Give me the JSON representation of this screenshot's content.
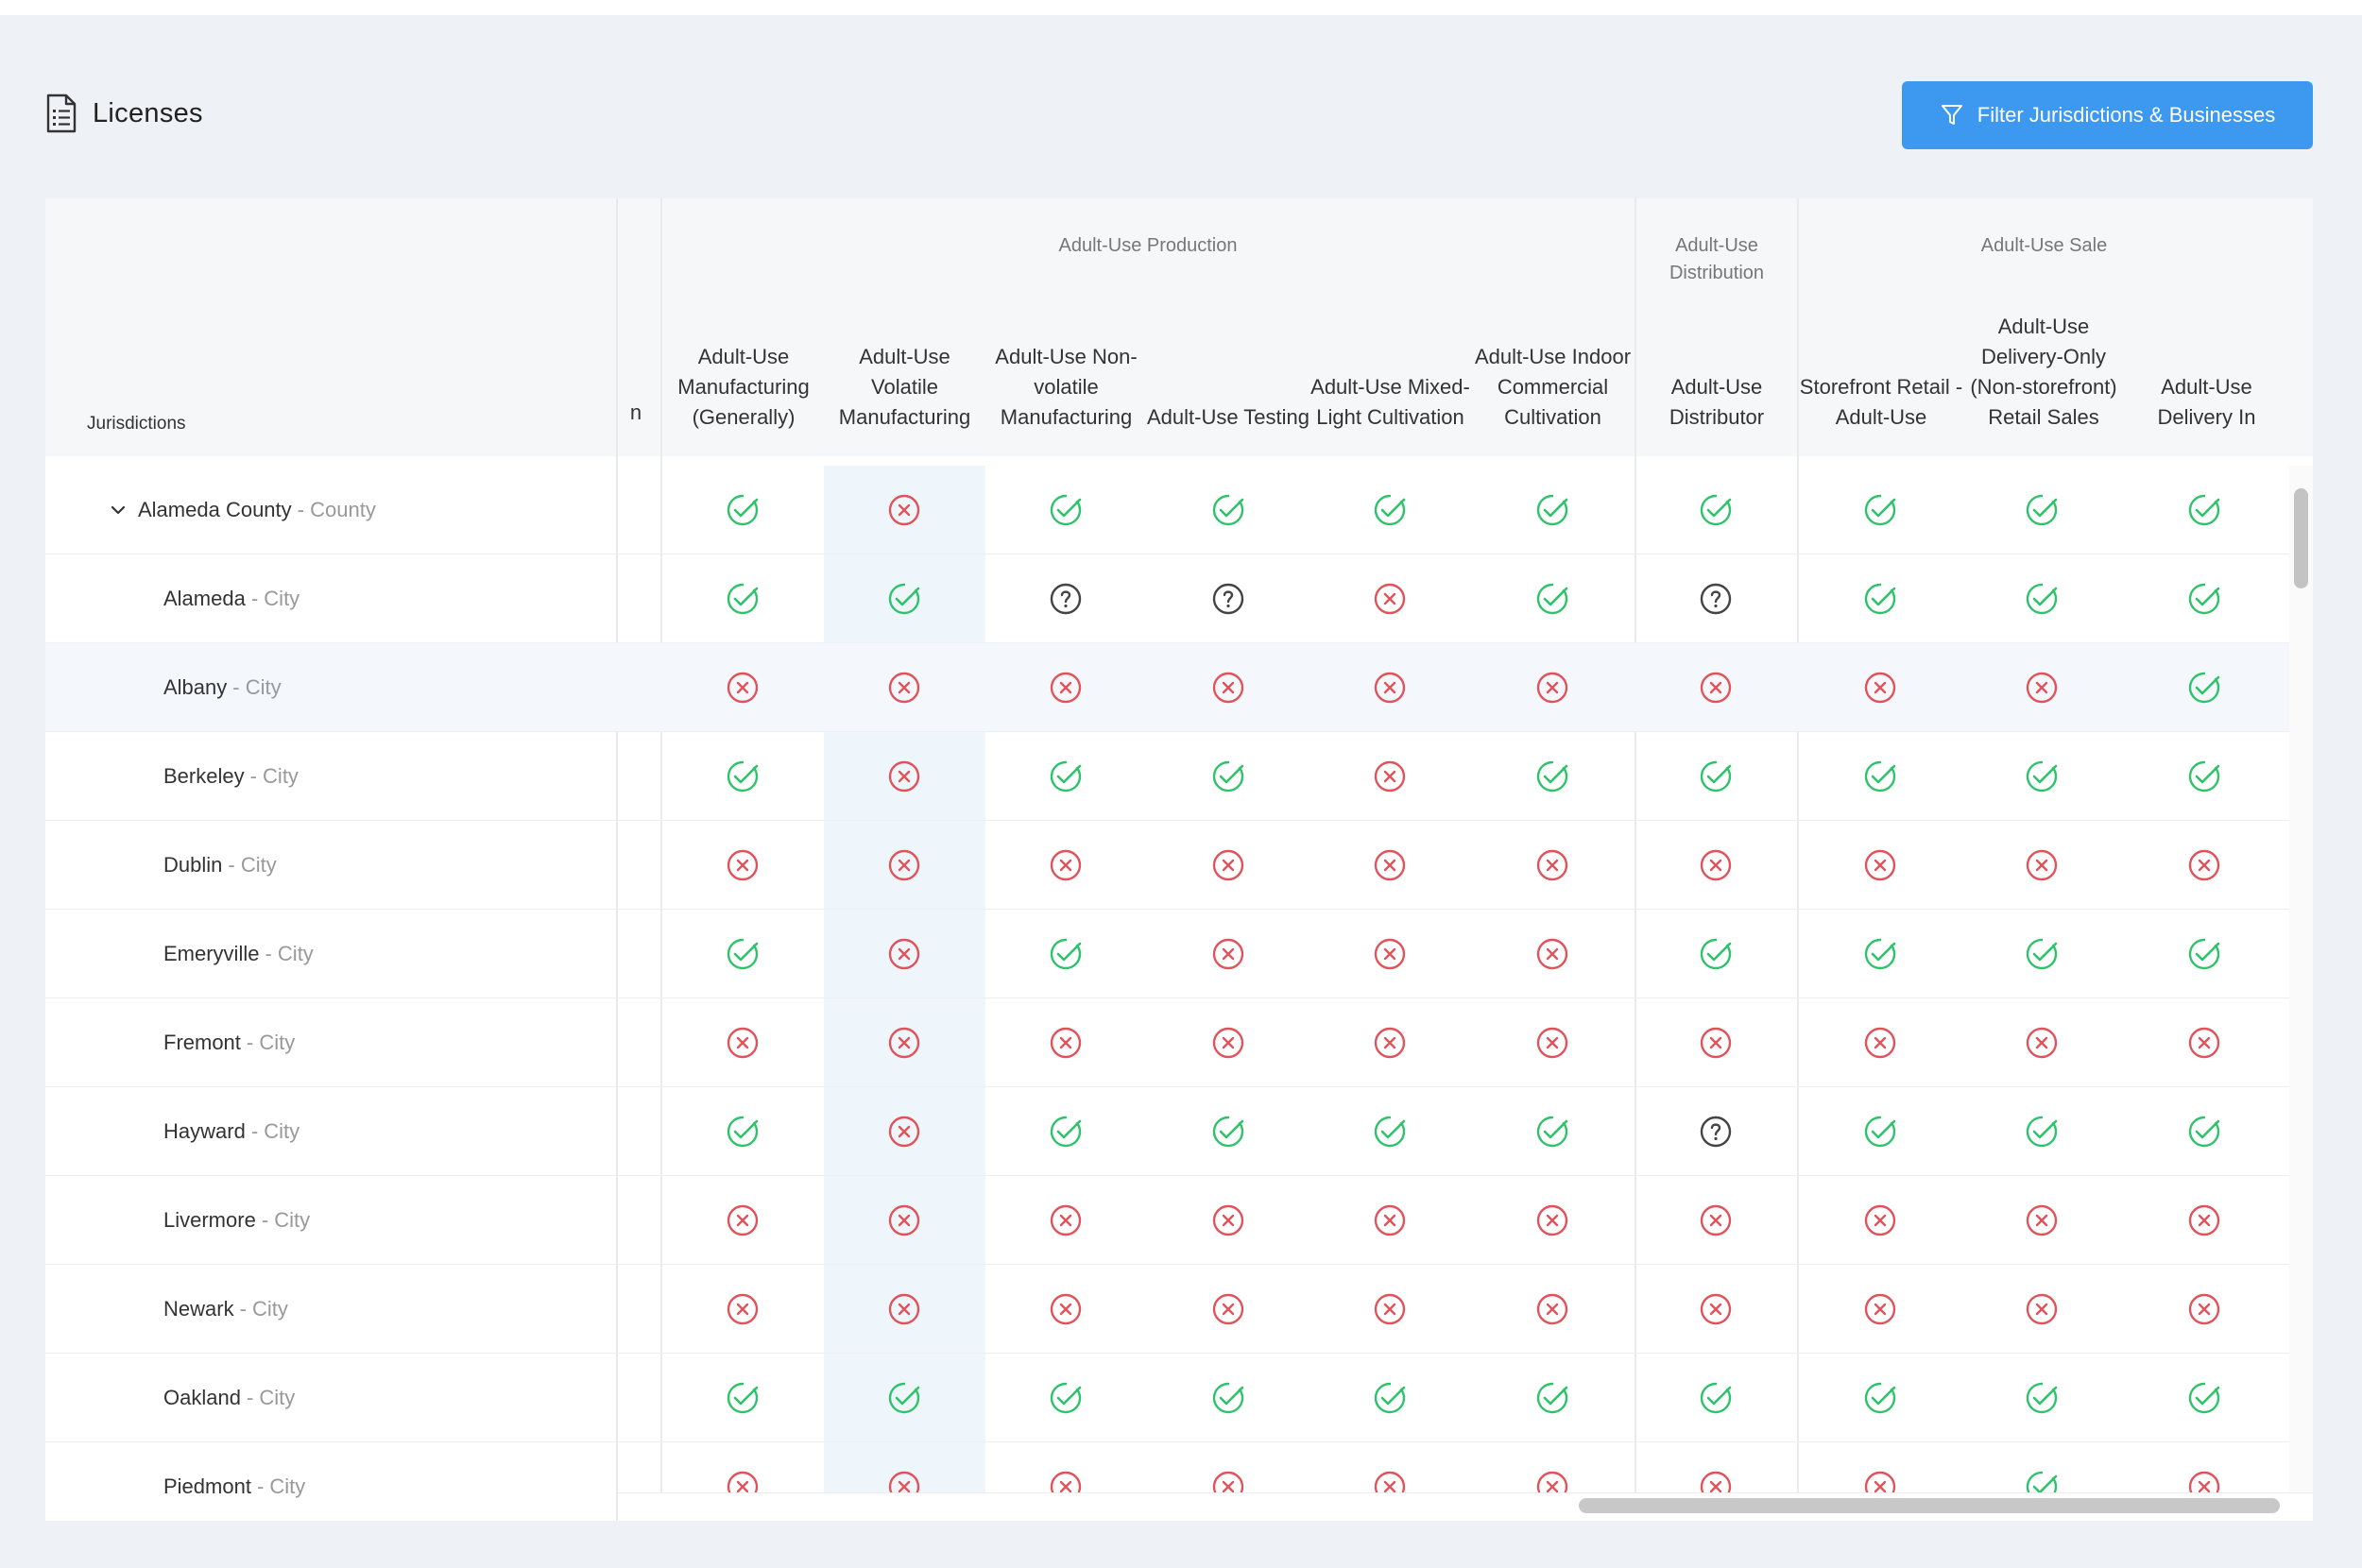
{
  "header": {
    "title": "Licenses",
    "title_icon": "document-icon",
    "filter_button": {
      "label": "Filter Jurisdictions & Businesses",
      "icon": "funnel-icon"
    }
  },
  "table": {
    "jurisdictions_header": "Jurisdictions",
    "partial_column_header_fragment": "n",
    "groups": [
      "Adult-Use Production",
      "Adult-Use Distribution",
      "Adult-Use Sale"
    ],
    "columns": [
      "Adult-Use Manufacturing (Generally)",
      "Adult-Use Volatile Manufacturing",
      "Adult-Use Non-volatile Manufacturing",
      "Adult-Use Testing",
      "Adult-Use Mixed-Light Cultivation",
      "Adult-Use Indoor Commercial Cultivation",
      "Adult-Use Distributor",
      "Storefront Retail - Adult-Use",
      "Adult-Use Delivery-Only (Non-storefront) Retail Sales",
      "Adult-Use Delivery In"
    ],
    "status_legend": {
      "Y": "allowed",
      "N": "prohibited",
      "U": "unknown"
    },
    "status_colors": {
      "Y": "#2ec26a",
      "N": "#e0535b",
      "U": "#444444"
    },
    "rows": [
      {
        "name": "Alameda County",
        "type": "County",
        "expanded": true,
        "statuses": [
          "Y",
          "N",
          "Y",
          "Y",
          "Y",
          "Y",
          "Y",
          "Y",
          "Y",
          "Y"
        ]
      },
      {
        "name": "Alameda",
        "type": "City",
        "statuses": [
          "Y",
          "Y",
          "U",
          "U",
          "N",
          "Y",
          "U",
          "Y",
          "Y",
          "Y"
        ]
      },
      {
        "name": "Albany",
        "type": "City",
        "hovered": true,
        "statuses": [
          "N",
          "N",
          "N",
          "N",
          "N",
          "N",
          "N",
          "N",
          "N",
          "Y"
        ]
      },
      {
        "name": "Berkeley",
        "type": "City",
        "statuses": [
          "Y",
          "N",
          "Y",
          "Y",
          "N",
          "Y",
          "Y",
          "Y",
          "Y",
          "Y"
        ]
      },
      {
        "name": "Dublin",
        "type": "City",
        "statuses": [
          "N",
          "N",
          "N",
          "N",
          "N",
          "N",
          "N",
          "N",
          "N",
          "N"
        ]
      },
      {
        "name": "Emeryville",
        "type": "City",
        "statuses": [
          "Y",
          "N",
          "Y",
          "N",
          "N",
          "N",
          "Y",
          "Y",
          "Y",
          "Y"
        ]
      },
      {
        "name": "Fremont",
        "type": "City",
        "statuses": [
          "N",
          "N",
          "N",
          "N",
          "N",
          "N",
          "N",
          "N",
          "N",
          "N"
        ]
      },
      {
        "name": "Hayward",
        "type": "City",
        "statuses": [
          "Y",
          "N",
          "Y",
          "Y",
          "Y",
          "Y",
          "U",
          "Y",
          "Y",
          "Y"
        ]
      },
      {
        "name": "Livermore",
        "type": "City",
        "statuses": [
          "N",
          "N",
          "N",
          "N",
          "N",
          "N",
          "N",
          "N",
          "N",
          "N"
        ]
      },
      {
        "name": "Newark",
        "type": "City",
        "statuses": [
          "N",
          "N",
          "N",
          "N",
          "N",
          "N",
          "N",
          "N",
          "N",
          "N"
        ]
      },
      {
        "name": "Oakland",
        "type": "City",
        "statuses": [
          "Y",
          "Y",
          "Y",
          "Y",
          "Y",
          "Y",
          "Y",
          "Y",
          "Y",
          "Y"
        ]
      },
      {
        "name": "Piedmont",
        "type": "City",
        "statuses": [
          "N",
          "N",
          "N",
          "N",
          "N",
          "N",
          "N",
          "N",
          "Y",
          "N"
        ]
      }
    ]
  }
}
